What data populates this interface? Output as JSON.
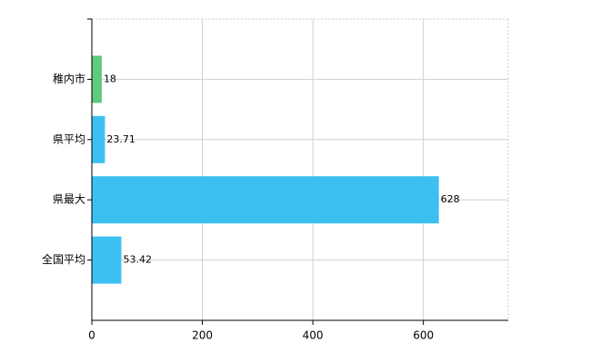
{
  "chart_data": {
    "type": "hbar",
    "categories": [
      "稚内市",
      "県平均",
      "県最大",
      "全国平均"
    ],
    "values": [
      18,
      23.71,
      628,
      53.42
    ],
    "colors": [
      "#5ccb7c",
      "#3cc0f2",
      "#3cc0f2",
      "#3cc0f2"
    ],
    "xlim": [
      0,
      753.6
    ],
    "xticks": [
      0,
      200,
      400,
      600
    ],
    "grid": true
  }
}
